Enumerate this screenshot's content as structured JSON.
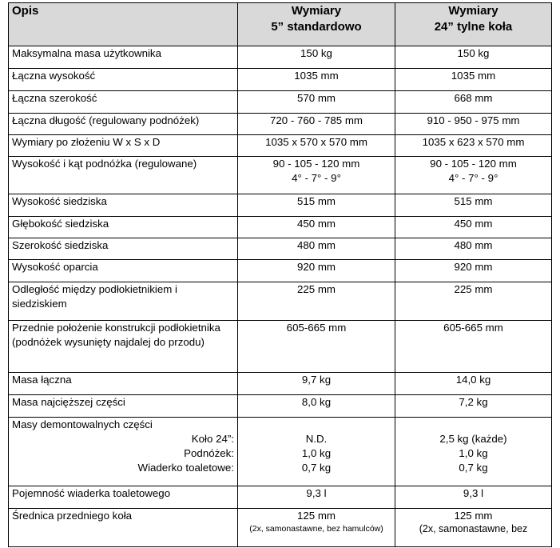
{
  "header": {
    "desc": "Opis",
    "col1_line1": "Wymiary",
    "col1_line2": "5” standardowo",
    "col2_line1": "Wymiary",
    "col2_line2": "24” tylne koła"
  },
  "rows": [
    {
      "label": "Maksymalna masa użytkownika",
      "v1": "150 kg",
      "v2": "150 kg"
    },
    {
      "label": "Łączna wysokość",
      "v1": "1035 mm",
      "v2": "1035 mm"
    },
    {
      "label": "Łączna szerokość",
      "v1": "570 mm",
      "v2": "668 mm"
    },
    {
      "label": "Łączna długość (regulowany podnóżek)",
      "v1": "720 - 760 - 785 mm",
      "v2": "910 - 950 - 975 mm"
    },
    {
      "label": "Wymiary po złożeniu W x S x D",
      "v1": "1035 x 570 x 570 mm",
      "v2": "1035 x 623 x 570 mm"
    },
    {
      "label": "Wysokość i kąt podnóżka (regulowane)",
      "v1": "90 - 105 - 120 mm",
      "v1b": "4° - 7° - 9°",
      "v2": "90 - 105 - 120 mm",
      "v2b": "4° - 7° - 9°"
    },
    {
      "label": "Wysokość siedziska",
      "v1": "515 mm",
      "v2": "515 mm"
    },
    {
      "label": "Głębokość siedziska",
      "v1": "450 mm",
      "v2": "450 mm"
    },
    {
      "label": "Szerokość siedziska",
      "v1": "480 mm",
      "v2": "480 mm"
    },
    {
      "label": "Wysokość oparcia",
      "v1": "920 mm",
      "v2": "920 mm"
    },
    {
      "label": "Odległość między podłokietnikiem i siedziskiem",
      "v1": "225 mm",
      "v2": "225 mm"
    },
    {
      "label": "Przednie położenie konstrukcji podłokietnika (podnóżek wysunięty najdalej do przodu)",
      "v1": "605-665 mm",
      "v2": "605-665 mm"
    },
    {
      "label": "Masa łączna",
      "v1": "9,7 kg",
      "v2": "14,0 kg"
    },
    {
      "label": "Masa najcięższej części",
      "v1": "8,0 kg",
      "v2": "7,2 kg"
    }
  ],
  "removable": {
    "label": "Masy demontowalnych części",
    "items": [
      {
        "label": "Koło 24”:",
        "v1": "N.D.",
        "v2": "2,5 kg (każde)"
      },
      {
        "label": "Podnóżek:",
        "v1": "1,0 kg",
        "v2": "1,0 kg"
      },
      {
        "label": "Wiaderko toaletowe:",
        "v1": "0,7 kg",
        "v2": "0,7 kg"
      }
    ]
  },
  "bucket": {
    "label": "Pojemność wiaderka toaletowego",
    "v1": "9,3 l",
    "v2": "9,3 l"
  },
  "front_wheel": {
    "label": "Średnica przedniego koła",
    "v1": "125 mm",
    "v1_note": "(2x, samonastawne, bez hamulców)",
    "v2": "125 mm",
    "v2_note": "(2x, samonastawne, bez"
  }
}
